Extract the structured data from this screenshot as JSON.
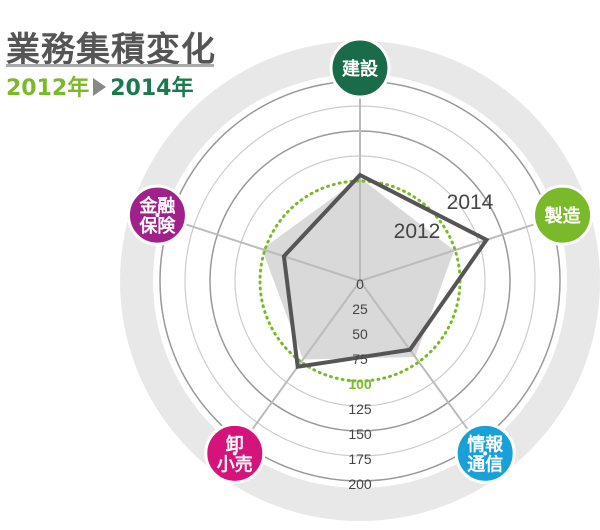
{
  "header": {
    "title": "業務集積変化",
    "from": "2012年",
    "to": "2014年"
  },
  "chart_data": {
    "type": "radar",
    "title": "業務集積変化",
    "categories": [
      "建設",
      "製造",
      "情報通信",
      "卸小売",
      "金融保険"
    ],
    "category_labels": [
      [
        "建設"
      ],
      [
        "製造"
      ],
      [
        "情報",
        "通信"
      ],
      [
        "卸",
        "小売"
      ],
      [
        "金融",
        "保険"
      ]
    ],
    "category_colors": [
      "#1a6b4a",
      "#7ab929",
      "#1aa0d8",
      "#d4147a",
      "#a0218a"
    ],
    "rticks": [
      0,
      25,
      50,
      75,
      100,
      125,
      150,
      175,
      200
    ],
    "rlim": [
      0,
      200
    ],
    "reference_value": 100,
    "series": [
      {
        "name": "2012",
        "values": [
          103,
          99,
          94,
          97,
          103
        ],
        "style": "fill",
        "color": "#d9d9d9"
      },
      {
        "name": "2014",
        "values": [
          106,
          133,
          85,
          106,
          80
        ],
        "style": "line",
        "color": "#555555"
      }
    ],
    "colors": {
      "reference": "#7ab929",
      "grid": "#aaaaaa",
      "band": "#e8e8e8"
    }
  }
}
